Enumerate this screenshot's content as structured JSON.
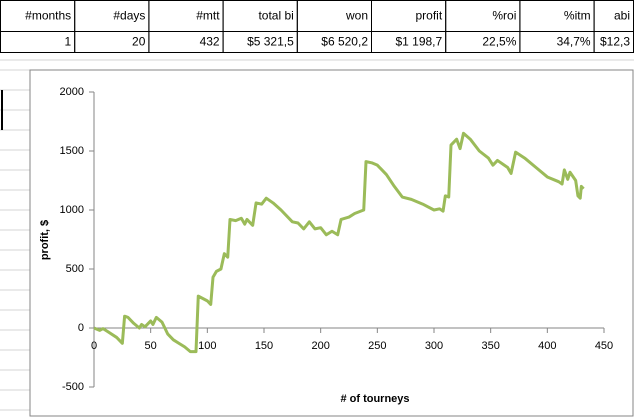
{
  "table": {
    "header": [
      "#months",
      "#days",
      "#mtt",
      "total bi",
      "won",
      "profit",
      "%roi",
      "%itm",
      "abi"
    ],
    "rows": [
      [
        "1",
        "20",
        "432",
        "$5 321,5",
        "$6 520,2",
        "$1 198,7",
        "22,5%",
        "34,7%",
        "$12,3"
      ]
    ]
  },
  "chart_data": {
    "type": "line",
    "xlabel": "# of tourneys",
    "ylabel": "profit, $",
    "xlim": [
      0,
      450
    ],
    "xticks": [
      0,
      50,
      100,
      150,
      200,
      250,
      300,
      350,
      400,
      450
    ],
    "ylim": [
      -500,
      2000
    ],
    "yticks": [
      -500,
      0,
      500,
      1000,
      1500,
      2000
    ],
    "x": [
      0,
      5,
      8,
      12,
      20,
      25,
      27,
      30,
      35,
      40,
      42,
      45,
      50,
      52,
      55,
      60,
      65,
      70,
      75,
      80,
      85,
      90,
      92,
      100,
      103,
      105,
      108,
      112,
      115,
      118,
      120,
      125,
      130,
      133,
      135,
      140,
      143,
      148,
      152,
      158,
      165,
      175,
      180,
      185,
      190,
      195,
      200,
      205,
      210,
      215,
      218,
      225,
      230,
      238,
      240,
      245,
      250,
      258,
      265,
      272,
      280,
      290,
      300,
      305,
      308,
      310,
      313,
      315,
      320,
      323,
      326,
      332,
      340,
      348,
      352,
      356,
      365,
      368,
      372,
      380,
      390,
      400,
      410,
      413,
      415,
      418,
      420,
      425,
      427,
      429,
      430,
      432
    ],
    "series": [
      {
        "name": "profit",
        "color": "#9bbb59",
        "values": [
          0,
          -20,
          -5,
          -30,
          -80,
          -130,
          100,
          90,
          40,
          0,
          30,
          10,
          60,
          30,
          90,
          50,
          -50,
          -100,
          -130,
          -160,
          -200,
          -200,
          270,
          230,
          200,
          430,
          480,
          500,
          630,
          600,
          920,
          910,
          930,
          880,
          920,
          870,
          1060,
          1050,
          1100,
          1060,
          1000,
          900,
          890,
          840,
          900,
          840,
          850,
          790,
          820,
          790,
          920,
          940,
          970,
          1000,
          1410,
          1400,
          1380,
          1300,
          1200,
          1110,
          1090,
          1050,
          1000,
          1010,
          990,
          1120,
          1110,
          1550,
          1600,
          1520,
          1650,
          1600,
          1500,
          1440,
          1380,
          1420,
          1360,
          1310,
          1490,
          1440,
          1360,
          1280,
          1240,
          1220,
          1340,
          1260,
          1320,
          1250,
          1120,
          1100,
          1200,
          1180
        ]
      }
    ]
  }
}
